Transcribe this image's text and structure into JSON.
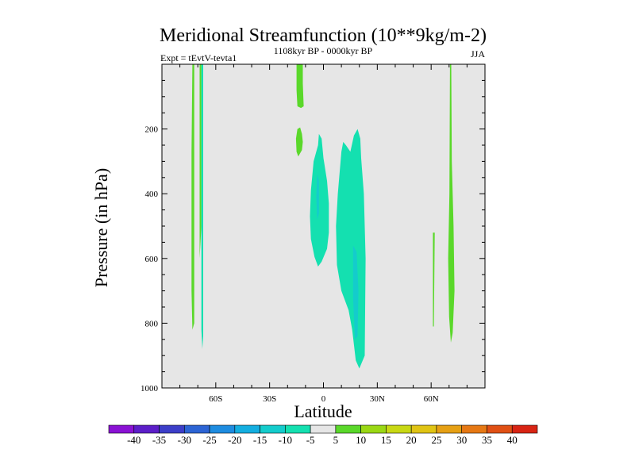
{
  "chart_data": {
    "type": "contour",
    "title": "Meridional Streamfunction (10**9kg/m-2)",
    "subtitle_left": "Expt = tEvtV-tevta1",
    "subtitle_center": "1108kyr BP - 0000kyr BP",
    "subtitle_right": "JJA",
    "xlabel": "Latitude",
    "ylabel": "Pressure (in hPa)",
    "xlim": [
      -90,
      90
    ],
    "ylim": [
      1000,
      0
    ],
    "x_ticks": [
      {
        "value": -60,
        "label": "60S"
      },
      {
        "value": -30,
        "label": "30S"
      },
      {
        "value": 0,
        "label": "0"
      },
      {
        "value": 30,
        "label": "30N"
      },
      {
        "value": 60,
        "label": "60N"
      }
    ],
    "y_ticks": [
      {
        "value": 200,
        "label": "200"
      },
      {
        "value": 400,
        "label": "400"
      },
      {
        "value": 600,
        "label": "600"
      },
      {
        "value": 800,
        "label": "800"
      },
      {
        "value": 1000,
        "label": "1000"
      }
    ],
    "background_color": "#e6e6e6",
    "colorbar": {
      "labels": [
        "-40",
        "-35",
        "-30",
        "-25",
        "-20",
        "-15",
        "-10",
        "-5",
        "5",
        "10",
        "15",
        "20",
        "25",
        "30",
        "35",
        "40"
      ],
      "colors": [
        "#8a12d4",
        "#5c1ec8",
        "#3c3ec8",
        "#2c64d4",
        "#1e8ce0",
        "#14aee0",
        "#14cccc",
        "#14e0b0",
        "#e6e6e6",
        "#5ad82a",
        "#9ad814",
        "#c8d814",
        "#e0c414",
        "#e6a014",
        "#e67814",
        "#e05014",
        "#d82414"
      ]
    },
    "regions": [
      {
        "name": "sh-polar-positive-west",
        "level": "5",
        "color": "#5ad82a",
        "points": [
          [
            -73,
            0
          ],
          [
            -72,
            0
          ],
          [
            -72,
            800
          ],
          [
            -73,
            820
          ],
          [
            -73.5,
            700
          ],
          [
            -73.5,
            270
          ],
          [
            -73,
            0
          ]
        ]
      },
      {
        "name": "sh-polar-positive-east",
        "level": "5",
        "color": "#5ad82a",
        "points": [
          [
            -69,
            0
          ],
          [
            -68,
            0
          ],
          [
            -68,
            500
          ],
          [
            -69,
            600
          ],
          [
            -69,
            0
          ]
        ]
      },
      {
        "name": "sh-polar-negative",
        "level": "-5",
        "color": "#14e0b0",
        "points": [
          [
            -68,
            0
          ],
          [
            -67,
            0
          ],
          [
            -67,
            840
          ],
          [
            -67.5,
            880
          ],
          [
            -68,
            820
          ],
          [
            -68,
            0
          ]
        ]
      },
      {
        "name": "upper-positive",
        "level": "5",
        "color": "#5ad82a",
        "points": [
          [
            -15,
            0
          ],
          [
            -11.5,
            0
          ],
          [
            -11.5,
            60
          ],
          [
            -11,
            130
          ],
          [
            -12.5,
            135
          ],
          [
            -14.5,
            130
          ],
          [
            -15,
            80
          ],
          [
            -15,
            0
          ]
        ]
      },
      {
        "name": "upper-positive-lobe",
        "level": "5",
        "color": "#5ad82a",
        "points": [
          [
            -14.5,
            200
          ],
          [
            -13,
            195
          ],
          [
            -12,
            215
          ],
          [
            -11.5,
            240
          ],
          [
            -12,
            265
          ],
          [
            -14,
            285
          ],
          [
            -15,
            270
          ],
          [
            -15.3,
            230
          ],
          [
            -14.5,
            200
          ]
        ]
      },
      {
        "name": "eq-negative-west",
        "level": "-5",
        "color": "#14e0b0",
        "points": [
          [
            -2.5,
            215
          ],
          [
            -1,
            230
          ],
          [
            0,
            290
          ],
          [
            2,
            360
          ],
          [
            3,
            430
          ],
          [
            3,
            520
          ],
          [
            2,
            570
          ],
          [
            -1,
            610
          ],
          [
            -3,
            625
          ],
          [
            -5,
            595
          ],
          [
            -7,
            540
          ],
          [
            -7.5,
            470
          ],
          [
            -7,
            390
          ],
          [
            -5.5,
            300
          ],
          [
            -3,
            250
          ],
          [
            -2.5,
            215
          ]
        ]
      },
      {
        "name": "eq-negative-east",
        "level": "-5",
        "color": "#14e0b0",
        "points": [
          [
            11,
            240
          ],
          [
            12.5,
            250
          ],
          [
            15,
            270
          ],
          [
            17,
            220
          ],
          [
            19,
            200
          ],
          [
            20.5,
            230
          ],
          [
            21,
            290
          ],
          [
            22.5,
            400
          ],
          [
            23.5,
            600
          ],
          [
            23,
            900
          ],
          [
            20,
            940
          ],
          [
            18,
            915
          ],
          [
            16,
            820
          ],
          [
            14,
            760
          ],
          [
            10,
            700
          ],
          [
            7.5,
            620
          ],
          [
            7,
            500
          ],
          [
            8,
            400
          ],
          [
            10,
            270
          ],
          [
            11,
            240
          ]
        ]
      },
      {
        "name": "eq-negative-core-west",
        "level": "-10",
        "color": "#14cccc",
        "points": [
          [
            -3.5,
            340
          ],
          [
            -2.5,
            360
          ],
          [
            -2.5,
            460
          ],
          [
            -3.5,
            480
          ],
          [
            -4,
            410
          ],
          [
            -3.5,
            340
          ]
        ]
      },
      {
        "name": "eq-negative-core-east",
        "level": "-10",
        "color": "#14cccc",
        "points": [
          [
            16.5,
            560
          ],
          [
            18.5,
            580
          ],
          [
            19.5,
            700
          ],
          [
            19,
            840
          ],
          [
            17.5,
            850
          ],
          [
            16.5,
            720
          ],
          [
            16.5,
            560
          ]
        ]
      },
      {
        "name": "nh-polar-positive-west",
        "level": "5",
        "color": "#5ad82a",
        "points": [
          [
            61,
            520
          ],
          [
            62,
            520
          ],
          [
            61.5,
            810
          ],
          [
            61,
            810
          ],
          [
            61,
            520
          ]
        ]
      },
      {
        "name": "nh-polar-positive-east",
        "level": "5",
        "color": "#5ad82a",
        "points": [
          [
            70.5,
            0
          ],
          [
            71.2,
            0
          ],
          [
            71.5,
            300
          ],
          [
            72.5,
            500
          ],
          [
            73,
            700
          ],
          [
            72,
            830
          ],
          [
            71,
            860
          ],
          [
            70,
            780
          ],
          [
            69.5,
            600
          ],
          [
            70.2,
            400
          ],
          [
            70.5,
            0
          ]
        ]
      }
    ]
  }
}
